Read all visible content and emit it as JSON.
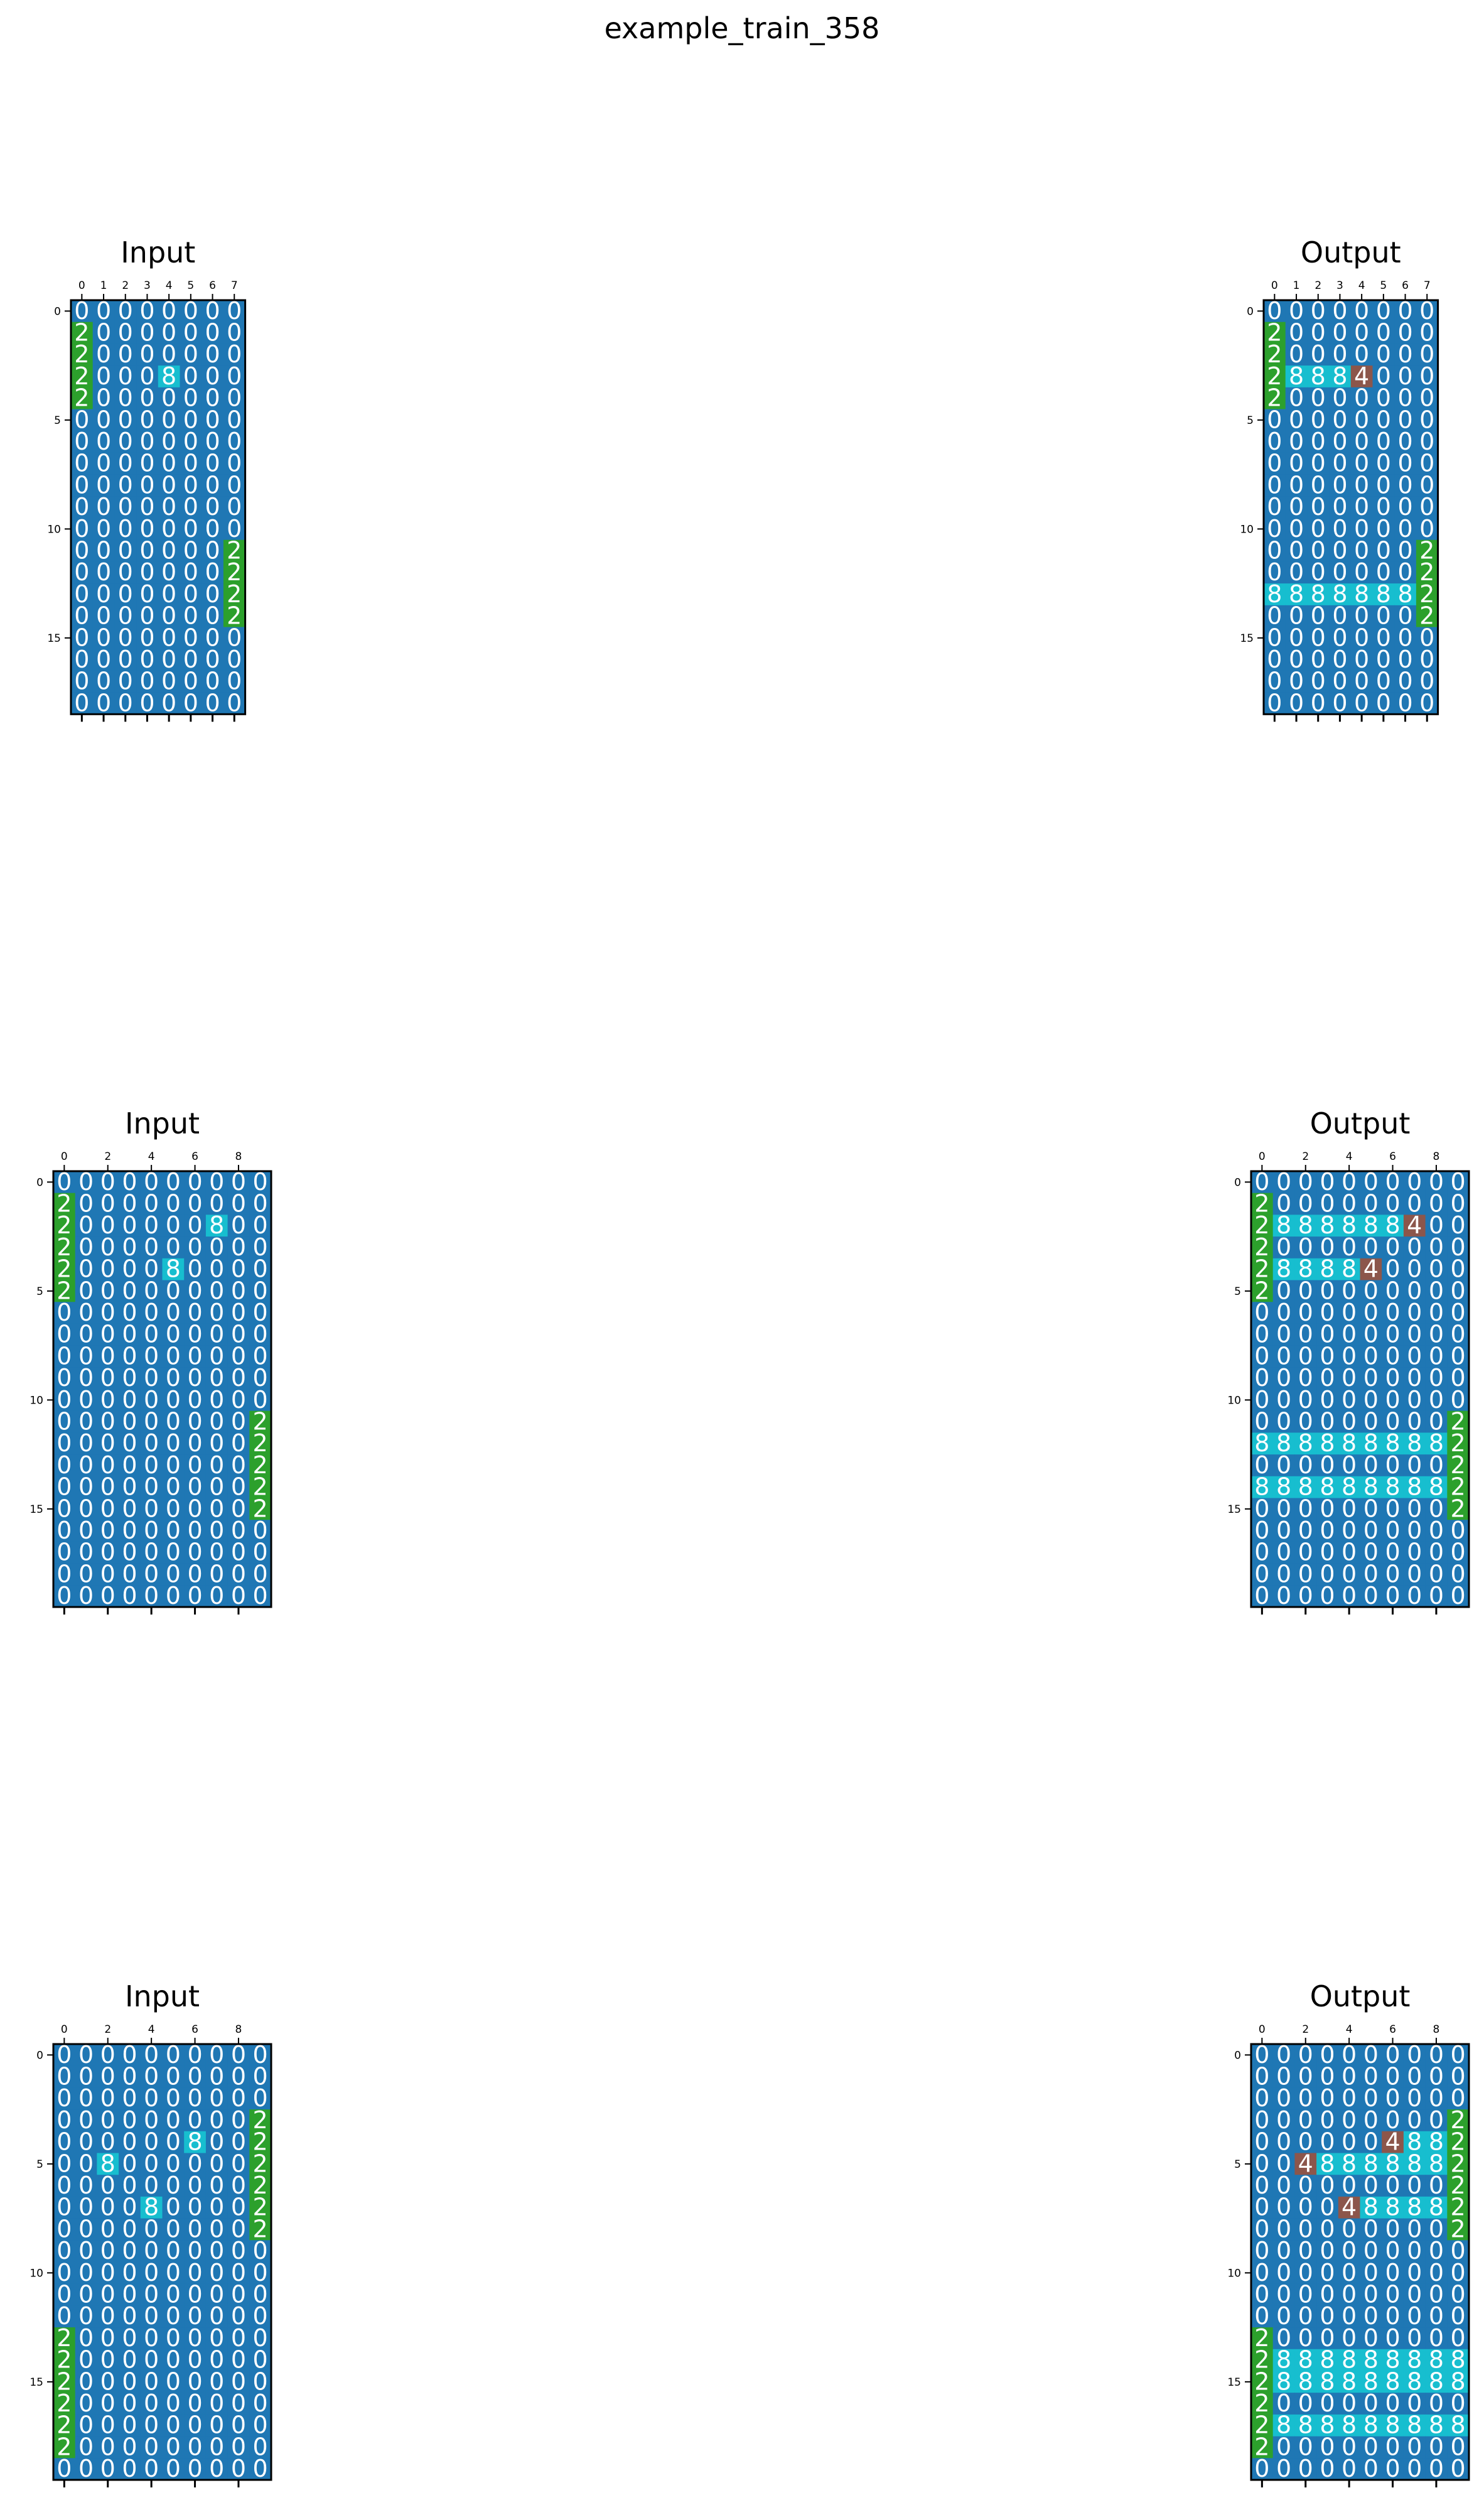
{
  "figure_title": "example_train_358",
  "colors": {
    "0": "#1f77b4",
    "2": "#2ca02c",
    "4": "#8c564b",
    "8": "#17becf",
    "cell_text": "#ffffff",
    "frame": "#000000"
  },
  "chart_data": [
    {
      "type": "heatmap",
      "title": "Input",
      "x_ticks": [
        0,
        1,
        2,
        3,
        4,
        5,
        6,
        7
      ],
      "y_ticks": [
        0,
        5,
        10,
        15
      ],
      "grid": [
        [
          0,
          0,
          0,
          0,
          0,
          0,
          0,
          0
        ],
        [
          2,
          0,
          0,
          0,
          0,
          0,
          0,
          0
        ],
        [
          2,
          0,
          0,
          0,
          0,
          0,
          0,
          0
        ],
        [
          2,
          0,
          0,
          0,
          8,
          0,
          0,
          0
        ],
        [
          2,
          0,
          0,
          0,
          0,
          0,
          0,
          0
        ],
        [
          0,
          0,
          0,
          0,
          0,
          0,
          0,
          0
        ],
        [
          0,
          0,
          0,
          0,
          0,
          0,
          0,
          0
        ],
        [
          0,
          0,
          0,
          0,
          0,
          0,
          0,
          0
        ],
        [
          0,
          0,
          0,
          0,
          0,
          0,
          0,
          0
        ],
        [
          0,
          0,
          0,
          0,
          0,
          0,
          0,
          0
        ],
        [
          0,
          0,
          0,
          0,
          0,
          0,
          0,
          0
        ],
        [
          0,
          0,
          0,
          0,
          0,
          0,
          0,
          2
        ],
        [
          0,
          0,
          0,
          0,
          0,
          0,
          0,
          2
        ],
        [
          0,
          0,
          0,
          0,
          0,
          0,
          0,
          2
        ],
        [
          0,
          0,
          0,
          0,
          0,
          0,
          0,
          2
        ],
        [
          0,
          0,
          0,
          0,
          0,
          0,
          0,
          0
        ],
        [
          0,
          0,
          0,
          0,
          0,
          0,
          0,
          0
        ],
        [
          0,
          0,
          0,
          0,
          0,
          0,
          0,
          0
        ],
        [
          0,
          0,
          0,
          0,
          0,
          0,
          0,
          0
        ]
      ]
    },
    {
      "type": "heatmap",
      "title": "Output",
      "x_ticks": [
        0,
        1,
        2,
        3,
        4,
        5,
        6,
        7
      ],
      "y_ticks": [
        0,
        5,
        10,
        15
      ],
      "grid": [
        [
          0,
          0,
          0,
          0,
          0,
          0,
          0,
          0
        ],
        [
          2,
          0,
          0,
          0,
          0,
          0,
          0,
          0
        ],
        [
          2,
          0,
          0,
          0,
          0,
          0,
          0,
          0
        ],
        [
          2,
          8,
          8,
          8,
          4,
          0,
          0,
          0
        ],
        [
          2,
          0,
          0,
          0,
          0,
          0,
          0,
          0
        ],
        [
          0,
          0,
          0,
          0,
          0,
          0,
          0,
          0
        ],
        [
          0,
          0,
          0,
          0,
          0,
          0,
          0,
          0
        ],
        [
          0,
          0,
          0,
          0,
          0,
          0,
          0,
          0
        ],
        [
          0,
          0,
          0,
          0,
          0,
          0,
          0,
          0
        ],
        [
          0,
          0,
          0,
          0,
          0,
          0,
          0,
          0
        ],
        [
          0,
          0,
          0,
          0,
          0,
          0,
          0,
          0
        ],
        [
          0,
          0,
          0,
          0,
          0,
          0,
          0,
          2
        ],
        [
          0,
          0,
          0,
          0,
          0,
          0,
          0,
          2
        ],
        [
          8,
          8,
          8,
          8,
          8,
          8,
          8,
          2
        ],
        [
          0,
          0,
          0,
          0,
          0,
          0,
          0,
          2
        ],
        [
          0,
          0,
          0,
          0,
          0,
          0,
          0,
          0
        ],
        [
          0,
          0,
          0,
          0,
          0,
          0,
          0,
          0
        ],
        [
          0,
          0,
          0,
          0,
          0,
          0,
          0,
          0
        ],
        [
          0,
          0,
          0,
          0,
          0,
          0,
          0,
          0
        ]
      ]
    },
    {
      "type": "heatmap",
      "title": "Input",
      "x_ticks": [
        0,
        2,
        4,
        6,
        8
      ],
      "y_ticks": [
        0,
        5,
        10,
        15
      ],
      "grid": [
        [
          0,
          0,
          0,
          0,
          0,
          0,
          0,
          0,
          0,
          0
        ],
        [
          2,
          0,
          0,
          0,
          0,
          0,
          0,
          0,
          0,
          0
        ],
        [
          2,
          0,
          0,
          0,
          0,
          0,
          0,
          8,
          0,
          0
        ],
        [
          2,
          0,
          0,
          0,
          0,
          0,
          0,
          0,
          0,
          0
        ],
        [
          2,
          0,
          0,
          0,
          0,
          8,
          0,
          0,
          0,
          0
        ],
        [
          2,
          0,
          0,
          0,
          0,
          0,
          0,
          0,
          0,
          0
        ],
        [
          0,
          0,
          0,
          0,
          0,
          0,
          0,
          0,
          0,
          0
        ],
        [
          0,
          0,
          0,
          0,
          0,
          0,
          0,
          0,
          0,
          0
        ],
        [
          0,
          0,
          0,
          0,
          0,
          0,
          0,
          0,
          0,
          0
        ],
        [
          0,
          0,
          0,
          0,
          0,
          0,
          0,
          0,
          0,
          0
        ],
        [
          0,
          0,
          0,
          0,
          0,
          0,
          0,
          0,
          0,
          0
        ],
        [
          0,
          0,
          0,
          0,
          0,
          0,
          0,
          0,
          0,
          2
        ],
        [
          0,
          0,
          0,
          0,
          0,
          0,
          0,
          0,
          0,
          2
        ],
        [
          0,
          0,
          0,
          0,
          0,
          0,
          0,
          0,
          0,
          2
        ],
        [
          0,
          0,
          0,
          0,
          0,
          0,
          0,
          0,
          0,
          2
        ],
        [
          0,
          0,
          0,
          0,
          0,
          0,
          0,
          0,
          0,
          2
        ],
        [
          0,
          0,
          0,
          0,
          0,
          0,
          0,
          0,
          0,
          0
        ],
        [
          0,
          0,
          0,
          0,
          0,
          0,
          0,
          0,
          0,
          0
        ],
        [
          0,
          0,
          0,
          0,
          0,
          0,
          0,
          0,
          0,
          0
        ],
        [
          0,
          0,
          0,
          0,
          0,
          0,
          0,
          0,
          0,
          0
        ]
      ]
    },
    {
      "type": "heatmap",
      "title": "Output",
      "x_ticks": [
        0,
        2,
        4,
        6,
        8
      ],
      "y_ticks": [
        0,
        5,
        10,
        15
      ],
      "grid": [
        [
          0,
          0,
          0,
          0,
          0,
          0,
          0,
          0,
          0,
          0
        ],
        [
          2,
          0,
          0,
          0,
          0,
          0,
          0,
          0,
          0,
          0
        ],
        [
          2,
          8,
          8,
          8,
          8,
          8,
          8,
          4,
          0,
          0
        ],
        [
          2,
          0,
          0,
          0,
          0,
          0,
          0,
          0,
          0,
          0
        ],
        [
          2,
          8,
          8,
          8,
          8,
          4,
          0,
          0,
          0,
          0
        ],
        [
          2,
          0,
          0,
          0,
          0,
          0,
          0,
          0,
          0,
          0
        ],
        [
          0,
          0,
          0,
          0,
          0,
          0,
          0,
          0,
          0,
          0
        ],
        [
          0,
          0,
          0,
          0,
          0,
          0,
          0,
          0,
          0,
          0
        ],
        [
          0,
          0,
          0,
          0,
          0,
          0,
          0,
          0,
          0,
          0
        ],
        [
          0,
          0,
          0,
          0,
          0,
          0,
          0,
          0,
          0,
          0
        ],
        [
          0,
          0,
          0,
          0,
          0,
          0,
          0,
          0,
          0,
          0
        ],
        [
          0,
          0,
          0,
          0,
          0,
          0,
          0,
          0,
          0,
          2
        ],
        [
          8,
          8,
          8,
          8,
          8,
          8,
          8,
          8,
          8,
          2
        ],
        [
          0,
          0,
          0,
          0,
          0,
          0,
          0,
          0,
          0,
          2
        ],
        [
          8,
          8,
          8,
          8,
          8,
          8,
          8,
          8,
          8,
          2
        ],
        [
          0,
          0,
          0,
          0,
          0,
          0,
          0,
          0,
          0,
          2
        ],
        [
          0,
          0,
          0,
          0,
          0,
          0,
          0,
          0,
          0,
          0
        ],
        [
          0,
          0,
          0,
          0,
          0,
          0,
          0,
          0,
          0,
          0
        ],
        [
          0,
          0,
          0,
          0,
          0,
          0,
          0,
          0,
          0,
          0
        ],
        [
          0,
          0,
          0,
          0,
          0,
          0,
          0,
          0,
          0,
          0
        ]
      ]
    },
    {
      "type": "heatmap",
      "title": "Input",
      "x_ticks": [
        0,
        2,
        4,
        6,
        8
      ],
      "y_ticks": [
        0,
        5,
        10,
        15
      ],
      "grid": [
        [
          0,
          0,
          0,
          0,
          0,
          0,
          0,
          0,
          0,
          0
        ],
        [
          0,
          0,
          0,
          0,
          0,
          0,
          0,
          0,
          0,
          0
        ],
        [
          0,
          0,
          0,
          0,
          0,
          0,
          0,
          0,
          0,
          0
        ],
        [
          0,
          0,
          0,
          0,
          0,
          0,
          0,
          0,
          0,
          2
        ],
        [
          0,
          0,
          0,
          0,
          0,
          0,
          8,
          0,
          0,
          2
        ],
        [
          0,
          0,
          8,
          0,
          0,
          0,
          0,
          0,
          0,
          2
        ],
        [
          0,
          0,
          0,
          0,
          0,
          0,
          0,
          0,
          0,
          2
        ],
        [
          0,
          0,
          0,
          0,
          8,
          0,
          0,
          0,
          0,
          2
        ],
        [
          0,
          0,
          0,
          0,
          0,
          0,
          0,
          0,
          0,
          2
        ],
        [
          0,
          0,
          0,
          0,
          0,
          0,
          0,
          0,
          0,
          0
        ],
        [
          0,
          0,
          0,
          0,
          0,
          0,
          0,
          0,
          0,
          0
        ],
        [
          0,
          0,
          0,
          0,
          0,
          0,
          0,
          0,
          0,
          0
        ],
        [
          0,
          0,
          0,
          0,
          0,
          0,
          0,
          0,
          0,
          0
        ],
        [
          2,
          0,
          0,
          0,
          0,
          0,
          0,
          0,
          0,
          0
        ],
        [
          2,
          0,
          0,
          0,
          0,
          0,
          0,
          0,
          0,
          0
        ],
        [
          2,
          0,
          0,
          0,
          0,
          0,
          0,
          0,
          0,
          0
        ],
        [
          2,
          0,
          0,
          0,
          0,
          0,
          0,
          0,
          0,
          0
        ],
        [
          2,
          0,
          0,
          0,
          0,
          0,
          0,
          0,
          0,
          0
        ],
        [
          2,
          0,
          0,
          0,
          0,
          0,
          0,
          0,
          0,
          0
        ],
        [
          0,
          0,
          0,
          0,
          0,
          0,
          0,
          0,
          0,
          0
        ]
      ]
    },
    {
      "type": "heatmap",
      "title": "Output",
      "x_ticks": [
        0,
        2,
        4,
        6,
        8
      ],
      "y_ticks": [
        0,
        5,
        10,
        15
      ],
      "grid": [
        [
          0,
          0,
          0,
          0,
          0,
          0,
          0,
          0,
          0,
          0
        ],
        [
          0,
          0,
          0,
          0,
          0,
          0,
          0,
          0,
          0,
          0
        ],
        [
          0,
          0,
          0,
          0,
          0,
          0,
          0,
          0,
          0,
          0
        ],
        [
          0,
          0,
          0,
          0,
          0,
          0,
          0,
          0,
          0,
          2
        ],
        [
          0,
          0,
          0,
          0,
          0,
          0,
          4,
          8,
          8,
          2
        ],
        [
          0,
          0,
          4,
          8,
          8,
          8,
          8,
          8,
          8,
          2
        ],
        [
          0,
          0,
          0,
          0,
          0,
          0,
          0,
          0,
          0,
          2
        ],
        [
          0,
          0,
          0,
          0,
          4,
          8,
          8,
          8,
          8,
          2
        ],
        [
          0,
          0,
          0,
          0,
          0,
          0,
          0,
          0,
          0,
          2
        ],
        [
          0,
          0,
          0,
          0,
          0,
          0,
          0,
          0,
          0,
          0
        ],
        [
          0,
          0,
          0,
          0,
          0,
          0,
          0,
          0,
          0,
          0
        ],
        [
          0,
          0,
          0,
          0,
          0,
          0,
          0,
          0,
          0,
          0
        ],
        [
          0,
          0,
          0,
          0,
          0,
          0,
          0,
          0,
          0,
          0
        ],
        [
          2,
          0,
          0,
          0,
          0,
          0,
          0,
          0,
          0,
          0
        ],
        [
          2,
          8,
          8,
          8,
          8,
          8,
          8,
          8,
          8,
          8
        ],
        [
          2,
          8,
          8,
          8,
          8,
          8,
          8,
          8,
          8,
          8
        ],
        [
          2,
          0,
          0,
          0,
          0,
          0,
          0,
          0,
          0,
          0
        ],
        [
          2,
          8,
          8,
          8,
          8,
          8,
          8,
          8,
          8,
          8
        ],
        [
          2,
          0,
          0,
          0,
          0,
          0,
          0,
          0,
          0,
          0
        ],
        [
          0,
          0,
          0,
          0,
          0,
          0,
          0,
          0,
          0,
          0
        ]
      ]
    }
  ]
}
